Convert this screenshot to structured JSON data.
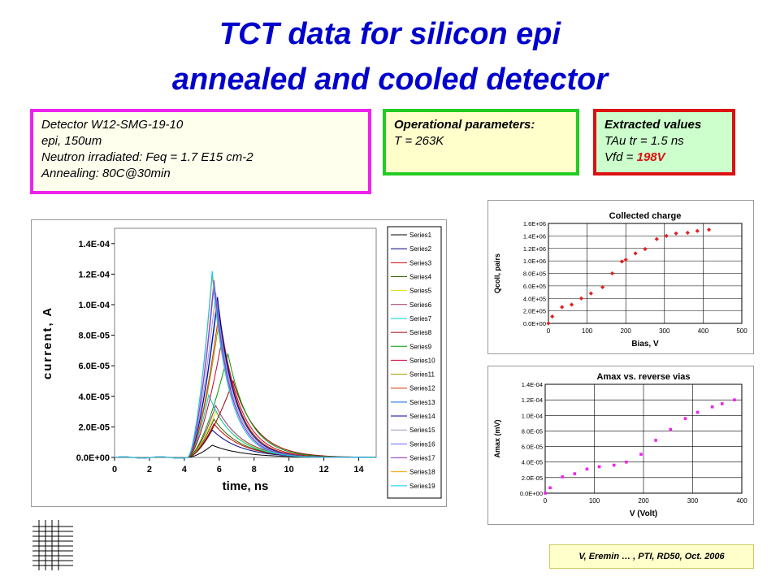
{
  "slide": {
    "title_line1": "TCT data for silicon epi",
    "title_line2": "annealed and cooled detector",
    "credit": "V, Eremin … , PTI, RD50, Oct. 2006"
  },
  "detector_box": {
    "lines": [
      "Detector W12-SMG-19-10",
      "epi, 150um",
      "Neutron irradiated: Feq = 1.7 E15 cm-2",
      "Annealing:  80C@30min"
    ]
  },
  "operational_box": {
    "heading": "Operational parameters:",
    "line1": "T = 263K"
  },
  "extracted_box": {
    "heading": "Extracted values",
    "line1": "TAu tr = 1.5 ns",
    "vfd_label": "Vfd = ",
    "vfd_value": "198V"
  },
  "colors": {
    "title": "#0000cc",
    "detector_border": "#ee22ee",
    "operational_border": "#22cc22",
    "extracted_border": "#dd1111",
    "charge_marker": "#dd2222",
    "amax_marker": "#ee22ee"
  },
  "chart_data": [
    {
      "id": "current",
      "type": "line",
      "title": "",
      "xlabel": "time, ns",
      "ylabel": "current, A",
      "xlim": [
        0,
        15
      ],
      "ylim": [
        0,
        0.00015
      ],
      "xticks": [
        "0",
        "2",
        "4",
        "6",
        "8",
        "10",
        "12",
        "14"
      ],
      "yticks": [
        "0.0E+00",
        "2.0E-05",
        "4.0E-05",
        "6.0E-05",
        "8.0E-05",
        "1.0E-04",
        "1.2E-04",
        "1.4E-04"
      ],
      "legend_position": "right",
      "series": [
        {
          "name": "Series1",
          "color": "#000000",
          "peak": 8e-06,
          "tpeak": 5.6
        },
        {
          "name": "Series2",
          "color": "#000080",
          "peak": 1.8e-05,
          "tpeak": 5.6
        },
        {
          "name": "Series3",
          "color": "#cc0000",
          "peak": 2.2e-05,
          "tpeak": 5.7
        },
        {
          "name": "Series4",
          "color": "#336600",
          "peak": 2.5e-05,
          "tpeak": 5.7
        },
        {
          "name": "Series5",
          "color": "#dddd00",
          "peak": 3e-05,
          "tpeak": 5.8
        },
        {
          "name": "Series6",
          "color": "#993366",
          "peak": 3.4e-05,
          "tpeak": 5.8
        },
        {
          "name": "Series7",
          "color": "#00cccc",
          "peak": 4.1e-05,
          "tpeak": 5.4
        },
        {
          "name": "Series8",
          "color": "#990000",
          "peak": 5e-05,
          "tpeak": 6.8
        },
        {
          "name": "Series9",
          "color": "#009900",
          "peak": 6.8e-05,
          "tpeak": 6.5
        },
        {
          "name": "Series10",
          "color": "#cc0033",
          "peak": 8e-05,
          "tpeak": 6.2
        },
        {
          "name": "Series11",
          "color": "#999900",
          "peak": 9e-05,
          "tpeak": 6.0
        },
        {
          "name": "Series12",
          "color": "#cc3300",
          "peak": 9.6e-05,
          "tpeak": 6.0
        },
        {
          "name": "Series13",
          "color": "#0066cc",
          "peak": 0.000102,
          "tpeak": 5.9
        },
        {
          "name": "Series14",
          "color": "#000099",
          "peak": 0.000105,
          "tpeak": 5.9
        },
        {
          "name": "Series15",
          "color": "#9999cc",
          "peak": 0.000108,
          "tpeak": 5.8
        },
        {
          "name": "Series16",
          "color": "#6666ff",
          "peak": 0.000112,
          "tpeak": 5.7
        },
        {
          "name": "Series17",
          "color": "#9933cc",
          "peak": 0.000116,
          "tpeak": 5.7
        },
        {
          "name": "Series18",
          "color": "#ff9900",
          "peak": 0.000119,
          "tpeak": 5.6
        },
        {
          "name": "Series19",
          "color": "#00ccff",
          "peak": 0.000122,
          "tpeak": 5.6
        }
      ]
    },
    {
      "id": "charge",
      "type": "scatter",
      "title": "Collected charge",
      "xlabel": "Bias, V",
      "ylabel": "Qcoll, pairs",
      "xlim": [
        0,
        500
      ],
      "ylim": [
        0,
        1600000
      ],
      "xticks": [
        "0",
        "100",
        "200",
        "300",
        "400",
        "500"
      ],
      "yticks": [
        "0.0E+00",
        "2.0E+05",
        "4.0E+05",
        "6.0E+05",
        "8.0E+05",
        "1.0E+06",
        "1.2E+06",
        "1.4E+06",
        "1.6E+06"
      ],
      "x": [
        0,
        10,
        35,
        60,
        85,
        110,
        140,
        165,
        190,
        200,
        225,
        250,
        280,
        305,
        330,
        360,
        385,
        415
      ],
      "y": [
        0,
        110000,
        260000,
        300000,
        400000,
        480000,
        580000,
        800000,
        990000,
        1020000,
        1120000,
        1190000,
        1350000,
        1400000,
        1440000,
        1450000,
        1480000,
        1500000
      ]
    },
    {
      "id": "amax",
      "type": "scatter",
      "title": "Amax vs. reverse vias",
      "xlabel": "V (Volt)",
      "ylabel": "Amax (mV)",
      "xlim": [
        0,
        400
      ],
      "ylim": [
        0,
        0.00014
      ],
      "xticks": [
        "0",
        "100",
        "200",
        "300",
        "400"
      ],
      "yticks": [
        "0.0E+00",
        "2.0E-05",
        "4.0E-05",
        "6.0E-05",
        "8.0E-05",
        "1.0E-04",
        "1.2E-04",
        "1.4E-04"
      ],
      "x": [
        0,
        10,
        35,
        60,
        85,
        110,
        140,
        165,
        195,
        225,
        255,
        285,
        310,
        340,
        360,
        385
      ],
      "y": [
        0,
        7e-06,
        2.1e-05,
        2.5e-05,
        3.1e-05,
        3.4e-05,
        3.6e-05,
        4e-05,
        5e-05,
        6.8e-05,
        8.2e-05,
        9.6e-05,
        0.000104,
        0.000111,
        0.000115,
        0.00012
      ]
    }
  ]
}
